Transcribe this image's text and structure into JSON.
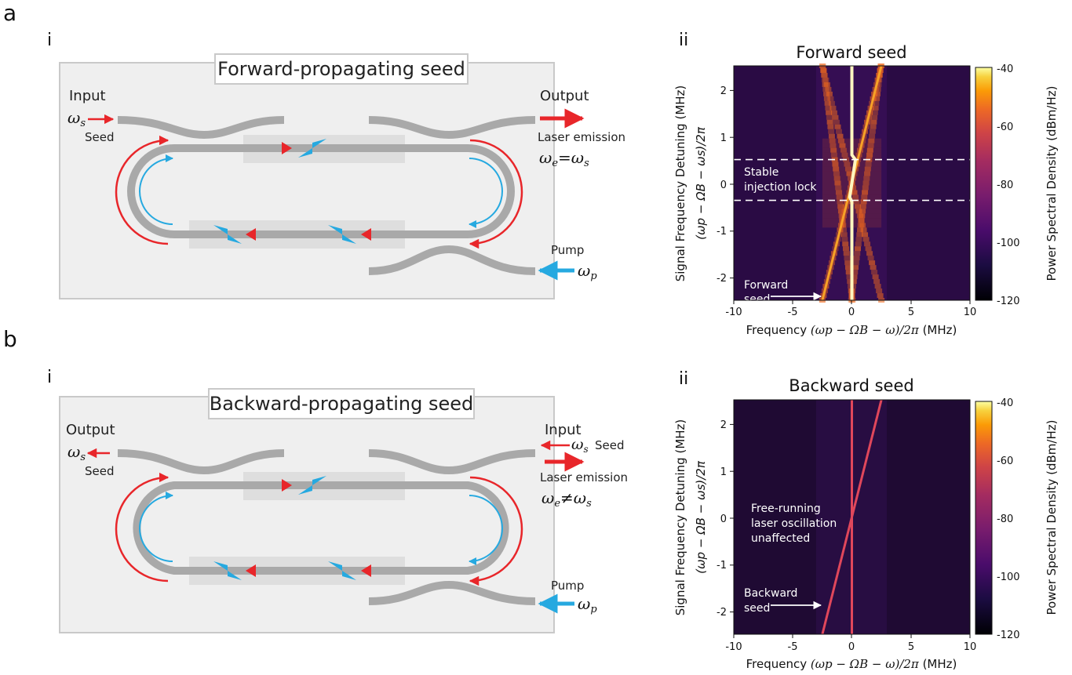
{
  "panels": [
    {
      "letter": "a",
      "diagram": {
        "sub": "i",
        "title": "Forward-propagating seed",
        "left_heading": "Input",
        "left_symbol": "ω",
        "left_symbol_sub": "s",
        "left_small": "Seed",
        "right_heading": "Output",
        "right_emission": "Laser emission",
        "emission_eq": "ωe = ωs",
        "emission_lhs": "ω",
        "emission_lhs_sub": "e",
        "emission_op": "=",
        "emission_rhs": "ω",
        "emission_rhs_sub": "s",
        "pump_label": "Pump",
        "pump_symbol": "ω",
        "pump_symbol_sub": "p"
      },
      "plot": {
        "sub": "ii",
        "annotation_upper": "Stable",
        "annotation_lower": "injection lock",
        "seed_label_1": "Forward",
        "seed_label_2": "seed"
      }
    },
    {
      "letter": "b",
      "diagram": {
        "sub": "i",
        "title": "Backward-propagating seed",
        "left_heading": "Output",
        "left_symbol": "ω",
        "left_symbol_sub": "s",
        "left_small": "Seed",
        "right_heading": "Input",
        "right_seed_symbol": "ω",
        "right_seed_symbol_sub": "s",
        "right_seed_word": "Seed",
        "right_emission": "Laser emission",
        "emission_eq": "ωe ≠ ωs",
        "emission_lhs": "ω",
        "emission_lhs_sub": "e",
        "emission_op": "≠",
        "emission_rhs": "ω",
        "emission_rhs_sub": "s",
        "pump_label": "Pump",
        "pump_symbol": "ω",
        "pump_symbol_sub": "p"
      },
      "plot": {
        "sub": "ii",
        "annotation_1": "Free-running",
        "annotation_2": "laser oscillation",
        "annotation_3": "unaffected",
        "seed_label_1": "Backward",
        "seed_label_2": "seed"
      }
    }
  ],
  "chart_data": [
    {
      "type": "heatmap",
      "title": "Forward seed",
      "xlabel_text": "Frequency",
      "xlabel_math": "(ωp − ΩB − ω)/2π",
      "xlabel_unit": "(MHz)",
      "ylabel_text": "Signal Frequency Detuning  (MHz)",
      "ylabel_math": "(ωp − ΩB − ωs)/2π",
      "xlim": [
        -10,
        10
      ],
      "ylim": [
        -2.5,
        2.5
      ],
      "xticks": [
        -10,
        -5,
        0,
        5,
        10
      ],
      "yticks": [
        -2,
        -1,
        0,
        1,
        2
      ],
      "colorbar": {
        "label": "Power Spectral Density (dBm/Hz)",
        "range": [
          -120,
          -40
        ],
        "ticks": [
          -40,
          -60,
          -80,
          -100,
          -120
        ]
      },
      "lock_range": [
        -0.37,
        0.5
      ],
      "features": [
        {
          "name": "laser line",
          "freq": 0,
          "peak_dBm_Hz": -40
        },
        {
          "name": "seed line",
          "freq_equals_detuning": true
        }
      ]
    },
    {
      "type": "heatmap",
      "title": "Backward seed",
      "xlabel_text": "Frequency",
      "xlabel_math": "(ωp − ΩB − ω)/2π",
      "xlabel_unit": "(MHz)",
      "ylabel_text": "Signal Frequency Detuning  (MHz)",
      "ylabel_math": "(ωp − ΩB − ωs)/2π",
      "xlim": [
        -10,
        10
      ],
      "ylim": [
        -2.5,
        2.5
      ],
      "xticks": [
        -10,
        -5,
        0,
        5,
        10
      ],
      "yticks": [
        -2,
        -1,
        0,
        1,
        2
      ],
      "colorbar": {
        "label": "Power Spectral Density (dBm/Hz)",
        "range": [
          -120,
          -40
        ],
        "ticks": [
          -40,
          -60,
          -80,
          -100,
          -120
        ]
      },
      "features": [
        {
          "name": "laser line",
          "freq": 0,
          "peak_dBm_Hz": -75
        },
        {
          "name": "seed line",
          "freq_equals_detuning": true
        }
      ]
    }
  ],
  "colors": {
    "red": "#e8262a",
    "blue": "#26a9e0",
    "waveguide": "#a9a9a9",
    "box_fill": "#efefef",
    "box_stroke": "#c9c9c9",
    "dash_line": "#ffffff"
  }
}
